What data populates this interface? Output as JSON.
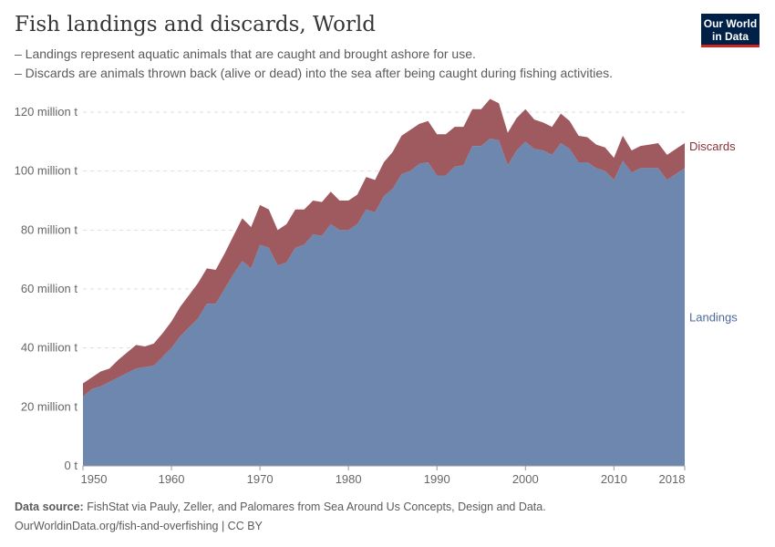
{
  "header": {
    "title": "Fish landings and discards, World",
    "subtitle_lines": [
      "– Landings represent aquatic animals that are caught and brought ashore for use.",
      "– Discards are animals thrown back (alive or dead) into the sea after being caught during fishing activities."
    ],
    "logo": "Our World in Data"
  },
  "footer": {
    "source_label": "Data source:",
    "source_text": "FishStat via Pauly, Zeller, and Palomares from Sea Around Us Concepts, Design and Data.",
    "url_line": "OurWorldinData.org/fish-and-overfishing | CC BY"
  },
  "chart_data": {
    "type": "area",
    "stacked": true,
    "x": [
      1950,
      1951,
      1952,
      1953,
      1954,
      1955,
      1956,
      1957,
      1958,
      1959,
      1960,
      1961,
      1962,
      1963,
      1964,
      1965,
      1966,
      1967,
      1968,
      1969,
      1970,
      1971,
      1972,
      1973,
      1974,
      1975,
      1976,
      1977,
      1978,
      1979,
      1980,
      1981,
      1982,
      1983,
      1984,
      1985,
      1986,
      1987,
      1988,
      1989,
      1990,
      1991,
      1992,
      1993,
      1994,
      1995,
      1996,
      1997,
      1998,
      1999,
      2000,
      2001,
      2002,
      2003,
      2004,
      2005,
      2006,
      2007,
      2008,
      2009,
      2010,
      2011,
      2012,
      2013,
      2014,
      2015,
      2016,
      2017,
      2018
    ],
    "series": [
      {
        "name": "Landings",
        "color": "#6d87ae",
        "values": [
          23.5,
          26,
          27,
          28.5,
          30,
          31.5,
          33,
          33.5,
          34,
          37,
          40,
          44,
          47,
          50,
          55,
          55,
          60,
          65,
          69.5,
          67,
          75,
          74,
          68,
          69,
          74,
          75,
          78.5,
          78,
          82,
          80,
          80,
          82,
          87,
          86,
          91.5,
          94,
          99,
          100,
          102.5,
          103,
          98.5,
          98.5,
          101.5,
          102,
          108.5,
          108.5,
          111,
          110.5,
          102,
          107,
          110,
          107.5,
          107,
          105.5,
          109.5,
          107.5,
          103,
          103,
          101,
          100,
          97,
          103.5,
          99.5,
          101,
          101,
          101,
          97,
          99,
          101
        ]
      },
      {
        "name": "Discards",
        "color": "#9e5a5f",
        "values": [
          4.5,
          4,
          5,
          4.5,
          6,
          7,
          8,
          7,
          7.5,
          8,
          9,
          10,
          11,
          12,
          12,
          11.5,
          12,
          13,
          14.5,
          14,
          13.5,
          13,
          12,
          13,
          13,
          12,
          11.5,
          11.5,
          11,
          10,
          10,
          10,
          11,
          11,
          11.5,
          12.5,
          13,
          14,
          13.5,
          14,
          14,
          14,
          13.5,
          13,
          12.5,
          12.5,
          13.5,
          12.5,
          11,
          11,
          11,
          10,
          9.5,
          9.5,
          10,
          9.5,
          9,
          8.5,
          8,
          8,
          7.5,
          8.5,
          7.5,
          7.5,
          8,
          8.5,
          8.5,
          8.5,
          8.5
        ]
      }
    ],
    "unit": "million t",
    "y_ticks": [
      "0 t",
      "20 million t",
      "40 million t",
      "60 million t",
      "80 million t",
      "100 million t",
      "120 million t"
    ],
    "y_tick_values": [
      0,
      20,
      40,
      60,
      80,
      100,
      120
    ],
    "x_ticks": [
      1950,
      1960,
      1970,
      1980,
      1990,
      2000,
      2010,
      2018
    ],
    "ylim": [
      0,
      120
    ],
    "xlim": [
      1950,
      2018
    ],
    "grid": "horizontal dashed",
    "legend": "right, inline labels"
  }
}
